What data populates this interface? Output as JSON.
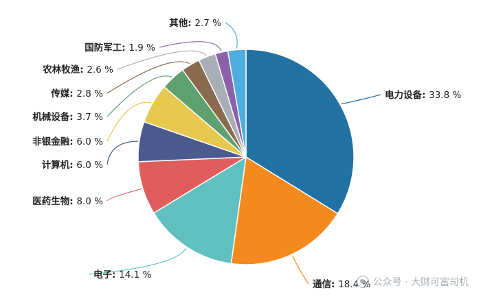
{
  "chart_data": {
    "type": "pie",
    "title": "",
    "slices": [
      {
        "label": "电力设备",
        "value": 33.8,
        "display": "33.8 %",
        "color": "#2271a3"
      },
      {
        "label": "通信",
        "value": 18.4,
        "display": "18.4 %",
        "color": "#f48a1d"
      },
      {
        "label": "电子",
        "value": 14.1,
        "display": "14.1 %",
        "color": "#5fc0bf"
      },
      {
        "label": "医药生物",
        "value": 8.0,
        "display": "8.0 %",
        "color": "#e05d5d"
      },
      {
        "label": "计算机",
        "value": 6.0,
        "display": "6.0 %",
        "color": "#4b5a8f"
      },
      {
        "label": "非银金融",
        "value": 6.0,
        "display": "6.0 %",
        "color": "#e6c84f"
      },
      {
        "label": "机械设备",
        "value": 3.7,
        "display": "3.7 %",
        "color": "#5ea06e"
      },
      {
        "label": "传媒",
        "value": 2.8,
        "display": "2.8 %",
        "color": "#8b6b4f"
      },
      {
        "label": "农林牧渔",
        "value": 2.6,
        "display": "2.6 %",
        "color": "#a7aeb5"
      },
      {
        "label": "国防军工",
        "value": 1.9,
        "display": "1.9 %",
        "color": "#8a62ab"
      },
      {
        "label": "其他",
        "value": 2.7,
        "display": "2.7 %",
        "color": "#4fade0"
      }
    ]
  },
  "watermark": {
    "text": "公众号 · 大财可富司机",
    "icon": "wechat-icon"
  }
}
